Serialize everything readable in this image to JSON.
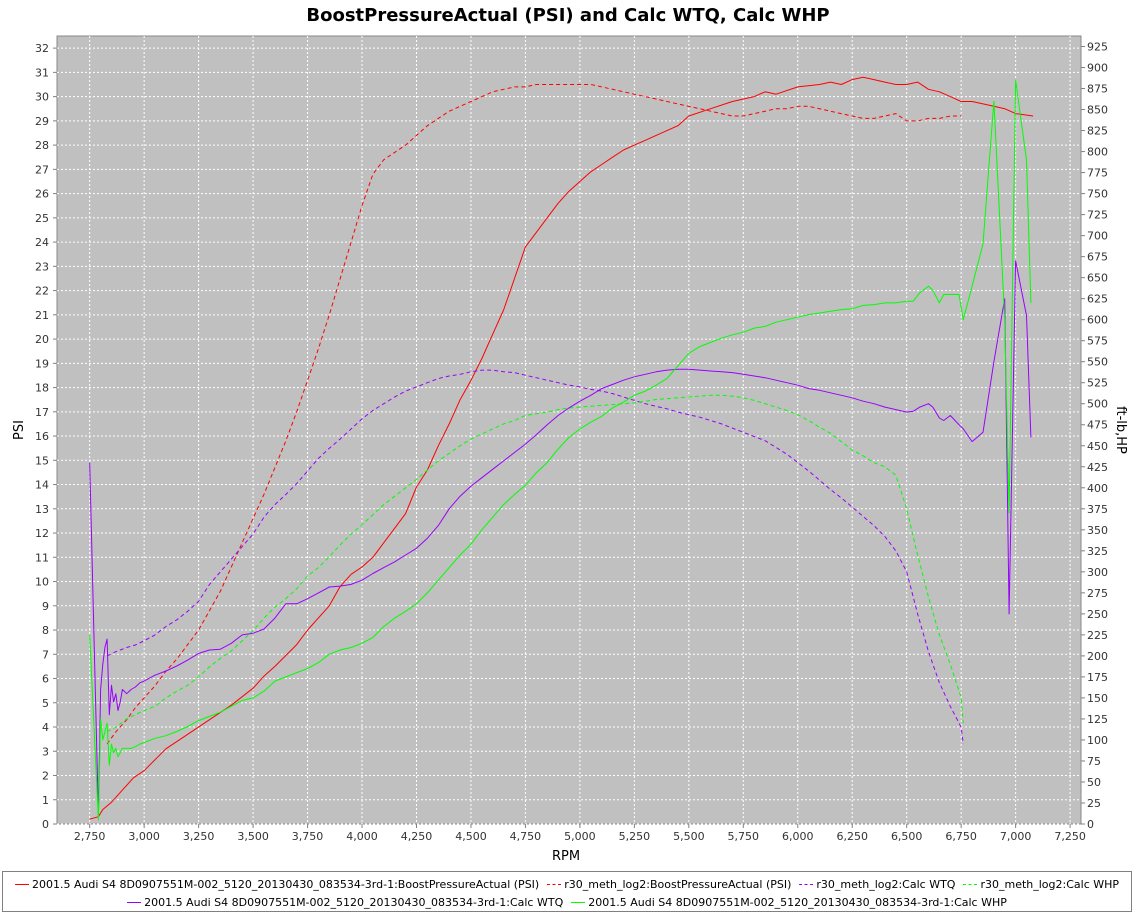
{
  "chart_data": {
    "type": "line",
    "title": "BoostPressureActual (PSI) and Calc WTQ, Calc WHP",
    "xlabel": "RPM",
    "ylabel_left": "PSI",
    "ylabel_right": "ft-lb,HP",
    "xlim": [
      2600,
      7300
    ],
    "ylim_left": [
      0,
      32.5
    ],
    "ylim_right": [
      0,
      937.5
    ],
    "x_ticks": [
      "2,750",
      "3,000",
      "3,250",
      "3,500",
      "3,750",
      "4,000",
      "4,250",
      "4,500",
      "4,750",
      "5,000",
      "5,250",
      "5,500",
      "5,750",
      "6,000",
      "6,250",
      "6,500",
      "6,750",
      "7,000",
      "7,250"
    ],
    "y_left_ticks": [
      "0",
      "1",
      "2",
      "3",
      "4",
      "5",
      "6",
      "7",
      "8",
      "9",
      "10",
      "11",
      "12",
      "13",
      "14",
      "15",
      "16",
      "17",
      "18",
      "19",
      "20",
      "21",
      "22",
      "23",
      "24",
      "25",
      "26",
      "27",
      "28",
      "29",
      "30",
      "31",
      "32"
    ],
    "y_right_ticks": [
      "0",
      "25",
      "50",
      "75",
      "100",
      "125",
      "150",
      "175",
      "200",
      "225",
      "250",
      "275",
      "300",
      "325",
      "350",
      "375",
      "400",
      "425",
      "450",
      "475",
      "500",
      "525",
      "550",
      "575",
      "600",
      "625",
      "650",
      "675",
      "700",
      "725",
      "750",
      "775",
      "800",
      "825",
      "850",
      "875",
      "900",
      "925"
    ],
    "grid": true,
    "background_color": "#c0c0c0",
    "legend_position": "bottom",
    "series": [
      {
        "name": "2001.5 Audi S4 8D0907551M-002_5120_20130430_083534-3rd-1:BoostPressureActual (PSI)",
        "axis": "left",
        "color": "#ff0000",
        "dash": "solid",
        "x": [
          2750,
          2790,
          2810,
          2850,
          2900,
          2950,
          3000,
          3100,
          3200,
          3300,
          3400,
          3500,
          3550,
          3600,
          3700,
          3750,
          3850,
          3900,
          3950,
          4000,
          4050,
          4100,
          4150,
          4200,
          4250,
          4300,
          4350,
          4400,
          4450,
          4500,
          4550,
          4600,
          4650,
          4700,
          4750,
          4800,
          4850,
          4900,
          4950,
          5000,
          5050,
          5100,
          5150,
          5200,
          5250,
          5300,
          5350,
          5400,
          5450,
          5500,
          5600,
          5700,
          5800,
          5850,
          5900,
          6000,
          6100,
          6150,
          6200,
          6250,
          6300,
          6350,
          6400,
          6450,
          6500,
          6550,
          6600,
          6650,
          6700,
          6750,
          6800,
          6850,
          6900,
          6950,
          7000,
          7080
        ],
        "y": [
          0.2,
          0.3,
          0.6,
          0.9,
          1.4,
          1.9,
          2.2,
          3.1,
          3.7,
          4.3,
          4.9,
          5.6,
          6.1,
          6.5,
          7.4,
          8.0,
          9.0,
          9.8,
          10.3,
          10.6,
          11.0,
          11.6,
          12.2,
          12.8,
          13.9,
          14.6,
          15.6,
          16.5,
          17.5,
          18.3,
          19.2,
          20.2,
          21.2,
          22.5,
          23.8,
          24.4,
          25.0,
          25.6,
          26.1,
          26.5,
          26.9,
          27.2,
          27.5,
          27.8,
          28.0,
          28.2,
          28.4,
          28.6,
          28.8,
          29.2,
          29.5,
          29.8,
          30.0,
          30.2,
          30.1,
          30.4,
          30.5,
          30.6,
          30.5,
          30.7,
          30.8,
          30.7,
          30.6,
          30.5,
          30.5,
          30.6,
          30.3,
          30.2,
          30.0,
          29.8,
          29.8,
          29.7,
          29.6,
          29.5,
          29.3,
          29.2
        ]
      },
      {
        "name": "r30_meth_log2:BoostPressureActual (PSI)",
        "axis": "left",
        "color": "#ff0000",
        "dash": "dashed",
        "x": [
          2830,
          2870,
          2920,
          2960,
          3000,
          3050,
          3100,
          3150,
          3200,
          3250,
          3300,
          3350,
          3400,
          3450,
          3500,
          3550,
          3600,
          3650,
          3700,
          3750,
          3800,
          3850,
          3900,
          3950,
          4000,
          4050,
          4100,
          4150,
          4200,
          4250,
          4300,
          4350,
          4400,
          4450,
          4500,
          4550,
          4600,
          4650,
          4700,
          4750,
          4800,
          4850,
          4900,
          4950,
          5000,
          5050,
          5100,
          5150,
          5200,
          5250,
          5300,
          5350,
          5400,
          5450,
          5500,
          5550,
          5600,
          5650,
          5700,
          5750,
          5800,
          5850,
          5900,
          5950,
          6000,
          6050,
          6100,
          6150,
          6200,
          6250,
          6300,
          6350,
          6400,
          6450,
          6500,
          6550,
          6600,
          6650,
          6700,
          6750
        ],
        "y": [
          3.3,
          3.8,
          4.3,
          4.8,
          5.2,
          5.7,
          6.3,
          6.8,
          7.4,
          8.0,
          8.8,
          9.6,
          10.6,
          11.6,
          12.6,
          13.6,
          14.7,
          15.8,
          17.0,
          18.3,
          19.6,
          21.0,
          22.5,
          24.0,
          25.5,
          26.8,
          27.4,
          27.7,
          28.0,
          28.4,
          28.8,
          29.1,
          29.4,
          29.6,
          29.8,
          30.0,
          30.2,
          30.3,
          30.4,
          30.4,
          30.5,
          30.5,
          30.5,
          30.5,
          30.5,
          30.5,
          30.4,
          30.3,
          30.2,
          30.1,
          30.0,
          29.9,
          29.8,
          29.7,
          29.6,
          29.5,
          29.4,
          29.3,
          29.2,
          29.2,
          29.3,
          29.4,
          29.5,
          29.5,
          29.6,
          29.6,
          29.5,
          29.4,
          29.3,
          29.2,
          29.1,
          29.1,
          29.2,
          29.3,
          29.0,
          29.0,
          29.1,
          29.1,
          29.2,
          29.2
        ]
      },
      {
        "name": "r30_meth_log2:Calc WTQ",
        "axis": "right",
        "color": "#9900ff",
        "dash": "dashed",
        "x": [
          2830,
          2870,
          2920,
          2960,
          3000,
          3050,
          3100,
          3150,
          3200,
          3250,
          3300,
          3350,
          3400,
          3450,
          3500,
          3550,
          3600,
          3650,
          3700,
          3750,
          3800,
          3850,
          3900,
          3950,
          4000,
          4050,
          4100,
          4150,
          4200,
          4250,
          4300,
          4350,
          4400,
          4450,
          4500,
          4550,
          4600,
          4650,
          4700,
          4750,
          4800,
          4850,
          4900,
          4950,
          5000,
          5050,
          5100,
          5150,
          5200,
          5250,
          5300,
          5350,
          5400,
          5450,
          5500,
          5550,
          5600,
          5650,
          5700,
          5750,
          5800,
          5850,
          5900,
          5950,
          6000,
          6050,
          6100,
          6150,
          6200,
          6250,
          6300,
          6350,
          6400,
          6450,
          6500,
          6550,
          6600,
          6650,
          6700,
          6750,
          6760
        ],
        "y": [
          200,
          205,
          210,
          213,
          218,
          225,
          235,
          243,
          253,
          265,
          285,
          300,
          315,
          330,
          345,
          365,
          380,
          392,
          405,
          420,
          435,
          447,
          458,
          470,
          482,
          492,
          500,
          508,
          515,
          520,
          525,
          530,
          533,
          535,
          538,
          540,
          540,
          538,
          537,
          534,
          531,
          528,
          525,
          522,
          520,
          517,
          515,
          512,
          508,
          504,
          500,
          497,
          494,
          490,
          487,
          484,
          480,
          476,
          471,
          466,
          461,
          456,
          448,
          440,
          430,
          420,
          409,
          398,
          388,
          377,
          366,
          355,
          342,
          325,
          300,
          250,
          205,
          168,
          140,
          115,
          95
        ]
      },
      {
        "name": "r30_meth_log2:Calc WHP",
        "axis": "right",
        "color": "#00ff00",
        "dash": "dashed",
        "x": [
          2830,
          2870,
          2920,
          2960,
          3000,
          3050,
          3100,
          3150,
          3200,
          3250,
          3300,
          3350,
          3400,
          3450,
          3500,
          3550,
          3600,
          3650,
          3700,
          3750,
          3800,
          3850,
          3900,
          3950,
          4000,
          4050,
          4100,
          4150,
          4200,
          4250,
          4300,
          4350,
          4400,
          4450,
          4500,
          4550,
          4600,
          4650,
          4700,
          4750,
          4800,
          4850,
          4900,
          4950,
          5000,
          5050,
          5100,
          5150,
          5200,
          5250,
          5300,
          5350,
          5400,
          5450,
          5500,
          5550,
          5600,
          5650,
          5700,
          5750,
          5800,
          5850,
          5900,
          5950,
          6000,
          6050,
          6100,
          6150,
          6200,
          6250,
          6300,
          6350,
          6400,
          6450,
          6500,
          6550,
          6600,
          6650,
          6700,
          6750,
          6760
        ],
        "y": [
          110,
          115,
          125,
          130,
          135,
          140,
          150,
          158,
          165,
          175,
          187,
          197,
          206,
          218,
          230,
          245,
          258,
          268,
          280,
          295,
          305,
          318,
          332,
          345,
          356,
          368,
          380,
          390,
          400,
          410,
          421,
          432,
          441,
          450,
          458,
          464,
          470,
          476,
          480,
          486,
          488,
          490,
          493,
          495,
          496,
          497,
          498,
          499,
          500,
          501,
          503,
          505,
          506,
          507,
          508,
          509,
          510,
          510,
          509,
          507,
          504,
          500,
          496,
          492,
          487,
          480,
          472,
          465,
          455,
          445,
          438,
          430,
          425,
          415,
          375,
          320,
          270,
          225,
          190,
          150,
          120
        ]
      },
      {
        "name": "2001.5 Audi S4 8D0907551M-002_5120_20130430_083534-3rd-1:Calc WTQ",
        "axis": "right",
        "color": "#9900ff",
        "dash": "solid",
        "x": [
          2750,
          2790,
          2800,
          2810,
          2820,
          2830,
          2840,
          2850,
          2860,
          2870,
          2880,
          2890,
          2900,
          2920,
          2940,
          2960,
          2980,
          3000,
          3050,
          3100,
          3150,
          3200,
          3250,
          3300,
          3350,
          3400,
          3450,
          3500,
          3550,
          3600,
          3650,
          3700,
          3750,
          3800,
          3850,
          3900,
          3950,
          4000,
          4050,
          4100,
          4150,
          4200,
          4250,
          4300,
          4350,
          4400,
          4450,
          4500,
          4550,
          4600,
          4650,
          4700,
          4750,
          4800,
          4850,
          4900,
          4950,
          5000,
          5050,
          5100,
          5150,
          5200,
          5250,
          5300,
          5350,
          5400,
          5450,
          5500,
          5550,
          5600,
          5650,
          5700,
          5750,
          5800,
          5850,
          5900,
          5950,
          6000,
          6050,
          6100,
          6150,
          6200,
          6250,
          6300,
          6350,
          6400,
          6450,
          6500,
          6530,
          6560,
          6600,
          6620,
          6650,
          6670,
          6700,
          6740,
          6760,
          6800,
          6850,
          6900,
          6950,
          6970,
          7000,
          7050,
          7070
        ],
        "y": [
          430,
          10,
          160,
          190,
          210,
          220,
          130,
          165,
          145,
          155,
          135,
          145,
          160,
          155,
          160,
          163,
          168,
          170,
          177,
          182,
          188,
          195,
          203,
          207,
          208,
          215,
          225,
          227,
          232,
          245,
          262,
          262,
          268,
          275,
          282,
          283,
          285,
          290,
          298,
          305,
          312,
          320,
          328,
          340,
          355,
          375,
          390,
          402,
          412,
          422,
          432,
          442,
          452,
          463,
          475,
          486,
          495,
          503,
          510,
          518,
          523,
          528,
          532,
          535,
          538,
          540,
          541,
          541,
          540,
          539,
          538,
          537,
          535,
          533,
          531,
          528,
          525,
          522,
          518,
          516,
          513,
          510,
          507,
          503,
          500,
          496,
          493,
          490,
          491,
          496,
          500,
          496,
          483,
          480,
          486,
          475,
          470,
          455,
          466,
          550,
          625,
          250,
          670,
          605,
          460
        ]
      },
      {
        "name": "2001.5 Audi S4 8D0907551M-002_5120_20130430_083534-3rd-1:Calc WHP",
        "axis": "right",
        "color": "#00ff00",
        "dash": "solid",
        "x": [
          2750,
          2790,
          2800,
          2810,
          2820,
          2830,
          2840,
          2850,
          2860,
          2870,
          2880,
          2890,
          2900,
          2920,
          2940,
          2960,
          2980,
          3000,
          3050,
          3100,
          3150,
          3200,
          3250,
          3300,
          3350,
          3400,
          3450,
          3500,
          3550,
          3600,
          3650,
          3700,
          3750,
          3800,
          3850,
          3900,
          3950,
          4000,
          4050,
          4100,
          4150,
          4200,
          4250,
          4300,
          4350,
          4400,
          4450,
          4500,
          4550,
          4600,
          4650,
          4700,
          4750,
          4800,
          4850,
          4900,
          4950,
          5000,
          5050,
          5100,
          5150,
          5200,
          5250,
          5300,
          5350,
          5400,
          5450,
          5500,
          5550,
          5600,
          5650,
          5700,
          5750,
          5800,
          5850,
          5900,
          5950,
          6000,
          6050,
          6100,
          6150,
          6200,
          6250,
          6300,
          6350,
          6400,
          6450,
          6500,
          6530,
          6560,
          6600,
          6620,
          6650,
          6670,
          6700,
          6740,
          6760,
          6800,
          6850,
          6900,
          6950,
          6970,
          7000,
          7050,
          7070
        ],
        "y": [
          225,
          5,
          125,
          100,
          110,
          120,
          70,
          95,
          85,
          90,
          80,
          85,
          90,
          90,
          90,
          92,
          95,
          97,
          102,
          105,
          110,
          116,
          123,
          128,
          133,
          140,
          147,
          150,
          158,
          170,
          175,
          180,
          185,
          192,
          202,
          207,
          210,
          215,
          222,
          235,
          245,
          253,
          262,
          275,
          290,
          305,
          320,
          333,
          350,
          365,
          380,
          392,
          403,
          418,
          430,
          446,
          460,
          470,
          478,
          485,
          495,
          502,
          510,
          515,
          522,
          530,
          545,
          560,
          568,
          573,
          578,
          582,
          585,
          590,
          592,
          597,
          600,
          603,
          606,
          608,
          610,
          612,
          613,
          617,
          618,
          620,
          620,
          622,
          622,
          632,
          640,
          635,
          620,
          630,
          630,
          630,
          600,
          640,
          690,
          860,
          600,
          370,
          885,
          790,
          620
        ]
      }
    ]
  },
  "legend": {
    "row1": [
      "2001.5 Audi S4 8D0907551M-002_5120_20130430_083534-3rd-1:BoostPressureActual (PSI)",
      "r30_meth_log2:BoostPressureActual (PSI)",
      "r30_meth_log2:Calc WTQ",
      "r30_meth_log2:Calc WHP"
    ],
    "row2": [
      "2001.5 Audi S4 8D0907551M-002_5120_20130430_083534-3rd-1:Calc WTQ",
      "2001.5 Audi S4 8D0907551M-002_5120_20130430_083534-3rd-1:Calc WHP"
    ]
  }
}
